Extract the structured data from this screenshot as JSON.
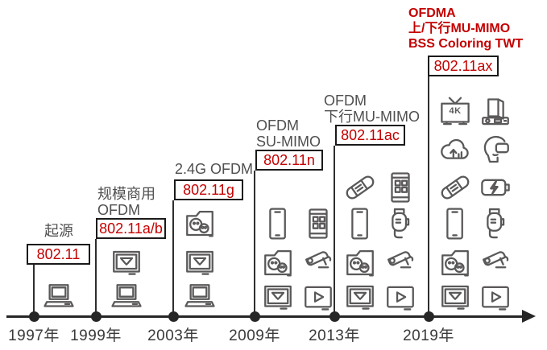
{
  "diagram": {
    "name": "wifi-standards-evolution-timeline",
    "colors": {
      "accent_red": "#c40000",
      "label_gray": "#4f4f4f",
      "icon_gray": "#5a5858",
      "axis_dark": "#262626"
    },
    "icon_labels": {
      "tv_4k": "4K"
    },
    "columns": [
      {
        "year": "1997年",
        "labels": [
          "起源"
        ],
        "label_style": "gray",
        "standard": "802.11",
        "icon_rows": [
          [
            "laptop"
          ]
        ]
      },
      {
        "year": "1999年",
        "labels": [
          "规模商用",
          "OFDM"
        ],
        "label_style": "gray",
        "standard": "802.11a/b",
        "icon_rows": [
          [
            "monitor-mail"
          ],
          [
            "laptop"
          ]
        ]
      },
      {
        "year": "2003年",
        "labels": [
          "2.4G OFDM"
        ],
        "label_style": "gray",
        "standard": "802.11g",
        "icon_rows": [
          [
            "folder-chat"
          ],
          [
            "monitor-mail"
          ],
          [
            "laptop"
          ]
        ]
      },
      {
        "year": "2009年",
        "labels": [
          "OFDM",
          "SU-MIMO"
        ],
        "label_style": "gray",
        "standard": "802.11n",
        "icon_rows": [
          [
            "smartphone",
            "phone-apps"
          ],
          [
            "folder-chat",
            "security-camera"
          ],
          [
            "monitor-mail",
            "video-player"
          ]
        ]
      },
      {
        "year": "2013年",
        "labels": [
          "OFDM",
          "下行MU-MIMO"
        ],
        "label_style": "gray",
        "standard": "802.11ac",
        "icon_rows": [
          [
            "smart-band",
            "phone-apps"
          ],
          [
            "smartphone",
            "smartwatch"
          ],
          [
            "folder-chat",
            "security-camera"
          ],
          [
            "monitor-mail",
            "video-player"
          ]
        ]
      },
      {
        "year": "2019年",
        "labels": [
          "OFDMA",
          "上/下行MU-MIMO",
          "BSS Coloring TWT"
        ],
        "label_style": "red",
        "standard": "802.11ax",
        "icon_rows": [
          [
            "tv-4k",
            "desktop-pc"
          ],
          [
            "cloud-upload",
            "vr-headset"
          ],
          [
            "smart-band",
            "battery-charging"
          ],
          [
            "smartphone",
            "smartwatch"
          ],
          [
            "folder-chat",
            "security-camera"
          ],
          [
            "monitor-mail",
            "video-player"
          ]
        ]
      }
    ]
  }
}
